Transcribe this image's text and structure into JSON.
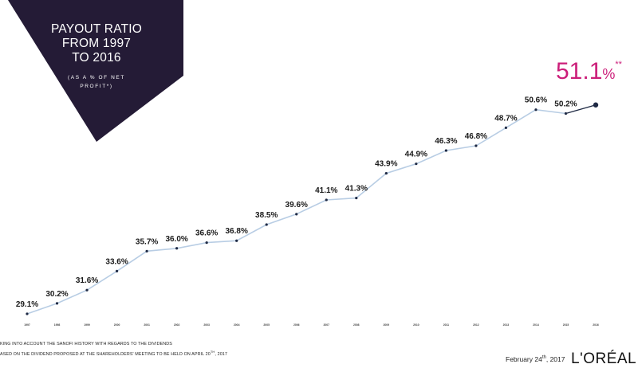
{
  "slide": {
    "title_lines": [
      "PAYOUT RATIO",
      "FROM 1997",
      "TO 2016"
    ],
    "subtitle_line1": "(AS A % OF NET",
    "subtitle_line2": "PROFIT*)",
    "highlight_value": "51.1",
    "highlight_pct": "%",
    "highlight_stars": "**",
    "footnote_1": "KING INTO ACCOUNT THE SANOFI HISTORY WITH REGARDS TO THE DIVIDENDS",
    "footnote_2": "ASED ON THE DIVIDEND PROPOSED AT THE SHAREHOLDERS' MEETING TO BE HELD ON APRIL 20",
    "footnote_2_sup": "TH",
    "footnote_2_end": ", 2017",
    "date_text": "February 24",
    "date_sup": "th",
    "date_year": ", 2017",
    "logo": "L'ORÉAL"
  },
  "colors": {
    "badge": "#241b36",
    "line": "#b8cde4",
    "dot": "#1f2a44",
    "highlight": "#cc1f7a"
  },
  "chart_data": {
    "type": "line",
    "x": [
      "1997",
      "1998",
      "1999",
      "2000",
      "2001",
      "2002",
      "2003",
      "2004",
      "2005",
      "2006",
      "2007",
      "2008",
      "2009",
      "2010",
      "2011",
      "2012",
      "2013",
      "2014",
      "2015",
      "2016"
    ],
    "values": [
      29.1,
      30.2,
      31.6,
      33.6,
      35.7,
      36.0,
      36.6,
      36.8,
      38.5,
      39.6,
      41.1,
      41.3,
      43.9,
      44.9,
      46.3,
      46.8,
      48.7,
      50.6,
      50.2,
      51.1
    ],
    "labels": [
      "29.1%",
      "30.2%",
      "31.6%",
      "33.6%",
      "35.7%",
      "36.0%",
      "36.6%",
      "36.8%",
      "38.5%",
      "39.6%",
      "41.1%",
      "41.3%",
      "43.9%",
      "44.9%",
      "46.3%",
      "46.8%",
      "48.7%",
      "50.6%",
      "50.2%",
      ""
    ],
    "highlighted_point": "2016",
    "axes_visible": false,
    "grid": false,
    "legend": "none"
  }
}
